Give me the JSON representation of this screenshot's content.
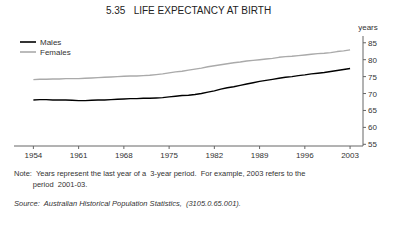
{
  "chart_data": {
    "type": "line",
    "title": "5.35   LIFE EXPECTANCY AT BIRTH",
    "ylabel": "years",
    "x": [
      1954,
      1955,
      1956,
      1957,
      1958,
      1959,
      1960,
      1961,
      1962,
      1963,
      1964,
      1965,
      1966,
      1967,
      1968,
      1969,
      1970,
      1971,
      1972,
      1973,
      1974,
      1975,
      1976,
      1977,
      1978,
      1979,
      1980,
      1981,
      1982,
      1983,
      1984,
      1985,
      1986,
      1987,
      1988,
      1989,
      1990,
      1991,
      1992,
      1993,
      1994,
      1995,
      1996,
      1997,
      1998,
      1999,
      2000,
      2001,
      2002,
      2003
    ],
    "series": [
      {
        "name": "Males",
        "color": "#000000",
        "values": [
          68.1,
          68.2,
          68.2,
          68.1,
          68.1,
          68.1,
          68.0,
          67.9,
          67.9,
          68.0,
          68.1,
          68.1,
          68.2,
          68.3,
          68.4,
          68.5,
          68.5,
          68.6,
          68.6,
          68.7,
          68.8,
          69.0,
          69.2,
          69.4,
          69.5,
          69.7,
          70.0,
          70.4,
          70.8,
          71.3,
          71.7,
          72.0,
          72.4,
          72.8,
          73.2,
          73.6,
          73.9,
          74.2,
          74.5,
          74.8,
          75.0,
          75.3,
          75.5,
          75.8,
          76.0,
          76.2,
          76.5,
          76.8,
          77.1,
          77.4
        ]
      },
      {
        "name": "Females",
        "color": "#aaaaaa",
        "values": [
          74.1,
          74.2,
          74.2,
          74.3,
          74.3,
          74.4,
          74.4,
          74.4,
          74.5,
          74.6,
          74.7,
          74.8,
          74.9,
          75.0,
          75.1,
          75.2,
          75.2,
          75.3,
          75.4,
          75.6,
          75.8,
          76.1,
          76.4,
          76.6,
          76.9,
          77.2,
          77.5,
          77.9,
          78.2,
          78.5,
          78.8,
          79.1,
          79.3,
          79.6,
          79.8,
          80.0,
          80.2,
          80.4,
          80.7,
          80.9,
          81.0,
          81.2,
          81.4,
          81.6,
          81.8,
          81.9,
          82.1,
          82.4,
          82.6,
          82.9
        ]
      }
    ],
    "xlim": [
      1951,
      2005
    ],
    "xticks": [
      1954,
      1961,
      1968,
      1975,
      1982,
      1989,
      1996,
      2003
    ],
    "ylim": [
      54.5,
      87
    ],
    "yticks": [
      55,
      60,
      65,
      70,
      75,
      80,
      85
    ],
    "grid": false,
    "legend": "upper left",
    "annotations": [
      "Note:  Years represent the last year of a  3-year period.  For example, 2003 refers to the",
      "         period  2001-03."
    ],
    "source": "Source:  Australian Historical Population Statistics,  (3105.0.65.001)."
  }
}
